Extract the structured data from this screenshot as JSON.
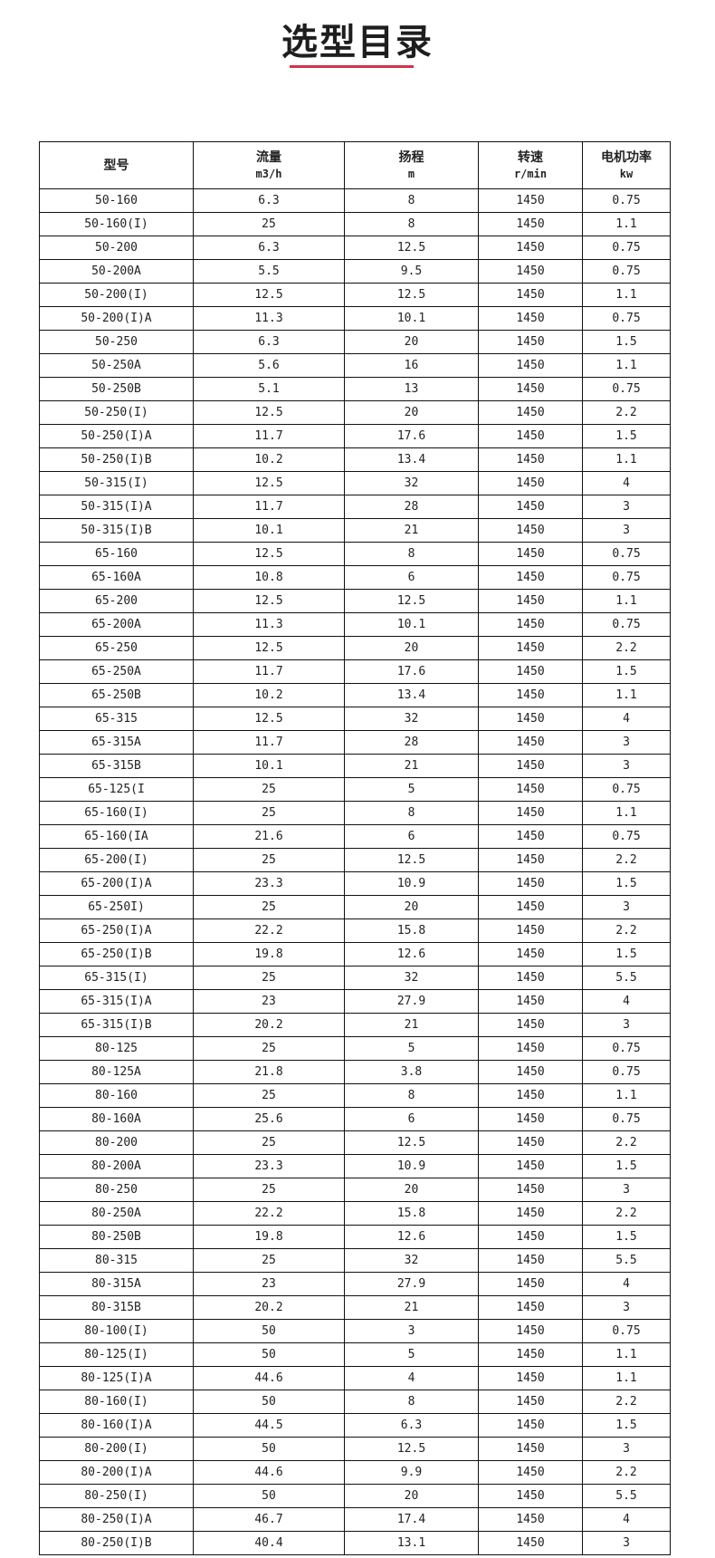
{
  "title": "选型目录",
  "accent_color": "#d0344b",
  "table": {
    "headers": [
      {
        "label": "型号",
        "unit": ""
      },
      {
        "label": "流量",
        "unit": "m3/h"
      },
      {
        "label": "扬程",
        "unit": "m"
      },
      {
        "label": "转速",
        "unit": "r/min"
      },
      {
        "label": "电机功率",
        "unit": "kw"
      }
    ],
    "rows": [
      [
        "50-160",
        "6.3",
        "8",
        "1450",
        "0.75"
      ],
      [
        "50-160(I)",
        "25",
        "8",
        "1450",
        "1.1"
      ],
      [
        "50-200",
        "6.3",
        "12.5",
        "1450",
        "0.75"
      ],
      [
        "50-200A",
        "5.5",
        "9.5",
        "1450",
        "0.75"
      ],
      [
        "50-200(I)",
        "12.5",
        "12.5",
        "1450",
        "1.1"
      ],
      [
        "50-200(I)A",
        "11.3",
        "10.1",
        "1450",
        "0.75"
      ],
      [
        "50-250",
        "6.3",
        "20",
        "1450",
        "1.5"
      ],
      [
        "50-250A",
        "5.6",
        "16",
        "1450",
        "1.1"
      ],
      [
        "50-250B",
        "5.1",
        "13",
        "1450",
        "0.75"
      ],
      [
        "50-250(I)",
        "12.5",
        "20",
        "1450",
        "2.2"
      ],
      [
        "50-250(I)A",
        "11.7",
        "17.6",
        "1450",
        "1.5"
      ],
      [
        "50-250(I)B",
        "10.2",
        "13.4",
        "1450",
        "1.1"
      ],
      [
        "50-315(I)",
        "12.5",
        "32",
        "1450",
        "4"
      ],
      [
        "50-315(I)A",
        "11.7",
        "28",
        "1450",
        "3"
      ],
      [
        "50-315(I)B",
        "10.1",
        "21",
        "1450",
        "3"
      ],
      [
        "65-160",
        "12.5",
        "8",
        "1450",
        "0.75"
      ],
      [
        "65-160A",
        "10.8",
        "6",
        "1450",
        "0.75"
      ],
      [
        "65-200",
        "12.5",
        "12.5",
        "1450",
        "1.1"
      ],
      [
        "65-200A",
        "11.3",
        "10.1",
        "1450",
        "0.75"
      ],
      [
        "65-250",
        "12.5",
        "20",
        "1450",
        "2.2"
      ],
      [
        "65-250A",
        "11.7",
        "17.6",
        "1450",
        "1.5"
      ],
      [
        "65-250B",
        "10.2",
        "13.4",
        "1450",
        "1.1"
      ],
      [
        "65-315",
        "12.5",
        "32",
        "1450",
        "4"
      ],
      [
        "65-315A",
        "11.7",
        "28",
        "1450",
        "3"
      ],
      [
        "65-315B",
        "10.1",
        "21",
        "1450",
        "3"
      ],
      [
        "65-125(I",
        "25",
        "5",
        "1450",
        "0.75"
      ],
      [
        "65-160(I)",
        "25",
        "8",
        "1450",
        "1.1"
      ],
      [
        "65-160(IA",
        "21.6",
        "6",
        "1450",
        "0.75"
      ],
      [
        "65-200(I)",
        "25",
        "12.5",
        "1450",
        "2.2"
      ],
      [
        "65-200(I)A",
        "23.3",
        "10.9",
        "1450",
        "1.5"
      ],
      [
        "65-250I)",
        "25",
        "20",
        "1450",
        "3"
      ],
      [
        "65-250(I)A",
        "22.2",
        "15.8",
        "1450",
        "2.2"
      ],
      [
        "65-250(I)B",
        "19.8",
        "12.6",
        "1450",
        "1.5"
      ],
      [
        "65-315(I)",
        "25",
        "32",
        "1450",
        "5.5"
      ],
      [
        "65-315(I)A",
        "23",
        "27.9",
        "1450",
        "4"
      ],
      [
        "65-315(I)B",
        "20.2",
        "21",
        "1450",
        "3"
      ],
      [
        "80-125",
        "25",
        "5",
        "1450",
        "0.75"
      ],
      [
        "80-125A",
        "21.8",
        "3.8",
        "1450",
        "0.75"
      ],
      [
        "80-160",
        "25",
        "8",
        "1450",
        "1.1"
      ],
      [
        "80-160A",
        "25.6",
        "6",
        "1450",
        "0.75"
      ],
      [
        "80-200",
        "25",
        "12.5",
        "1450",
        "2.2"
      ],
      [
        "80-200A",
        "23.3",
        "10.9",
        "1450",
        "1.5"
      ],
      [
        "80-250",
        "25",
        "20",
        "1450",
        "3"
      ],
      [
        "80-250A",
        "22.2",
        "15.8",
        "1450",
        "2.2"
      ],
      [
        "80-250B",
        "19.8",
        "12.6",
        "1450",
        "1.5"
      ],
      [
        "80-315",
        "25",
        "32",
        "1450",
        "5.5"
      ],
      [
        "80-315A",
        "23",
        "27.9",
        "1450",
        "4"
      ],
      [
        "80-315B",
        "20.2",
        "21",
        "1450",
        "3"
      ],
      [
        "80-100(I)",
        "50",
        "3",
        "1450",
        "0.75"
      ],
      [
        "80-125(I)",
        "50",
        "5",
        "1450",
        "1.1"
      ],
      [
        "80-125(I)A",
        "44.6",
        "4",
        "1450",
        "1.1"
      ],
      [
        "80-160(I)",
        "50",
        "8",
        "1450",
        "2.2"
      ],
      [
        "80-160(I)A",
        "44.5",
        "6.3",
        "1450",
        "1.5"
      ],
      [
        "80-200(I)",
        "50",
        "12.5",
        "1450",
        "3"
      ],
      [
        "80-200(I)A",
        "44.6",
        "9.9",
        "1450",
        "2.2"
      ],
      [
        "80-250(I)",
        "50",
        "20",
        "1450",
        "5.5"
      ],
      [
        "80-250(I)A",
        "46.7",
        "17.4",
        "1450",
        "4"
      ],
      [
        "80-250(I)B",
        "40.4",
        "13.1",
        "1450",
        "3"
      ]
    ]
  }
}
